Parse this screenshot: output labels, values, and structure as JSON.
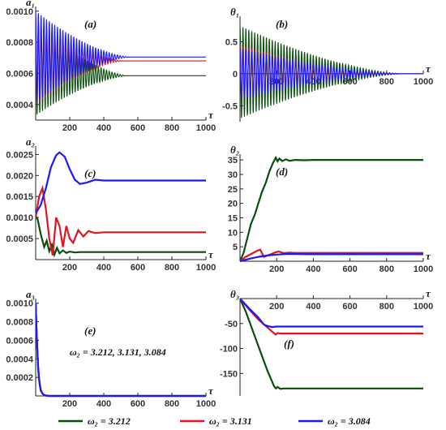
{
  "colors": {
    "green": "#0b4d0b",
    "red": "#e0141e",
    "blue": "#1a1aff"
  },
  "legend": [
    {
      "label": "ω₂ = 3.212",
      "color": "#0b4d0b"
    },
    {
      "label": "ω₂ = 3.131",
      "color": "#e0141e"
    },
    {
      "label": "ω₂ = 3.084",
      "color": "#1a1aff"
    }
  ],
  "chart_data": [
    {
      "type": "line",
      "panel_label": "(a)",
      "ylabel": "a₁",
      "xlabel": "τ",
      "xlim": [
        0,
        1000
      ],
      "ylim": [
        0.0003,
        0.00103
      ],
      "xticks": [
        200,
        400,
        600,
        800,
        1000
      ],
      "xtick_labels": [
        "200",
        "400",
        "600",
        "800",
        "1000"
      ],
      "yticks": [
        0.0004,
        0.0006,
        0.0008,
        0.001
      ],
      "ytick_labels": [
        "0.0004",
        "0.0006",
        "0.0008",
        "0.0010"
      ],
      "x_axis_at": 0.0003,
      "series": [
        {
          "name": "ω₂ = 3.212",
          "kind": "osc",
          "steady": 0.000585,
          "start_lo": 0.00033,
          "start_hi": 0.00093,
          "tau_end": 550,
          "period": 16,
          "color": "#0b4d0b"
        },
        {
          "name": "ω₂ = 3.131",
          "kind": "osc",
          "steady": 0.00068,
          "start_lo": 0.0004,
          "start_hi": 0.00096,
          "tau_end": 520,
          "period": 16,
          "color": "#e0141e"
        },
        {
          "name": "ω₂ = 3.084",
          "kind": "osc",
          "steady": 0.000705,
          "start_lo": 0.00041,
          "start_hi": 0.001,
          "tau_end": 560,
          "period": 16,
          "color": "#1a1aff"
        }
      ]
    },
    {
      "type": "line",
      "panel_label": "(b)",
      "ylabel": "θ₁",
      "xlabel": "τ",
      "xlim": [
        0,
        1000
      ],
      "ylim": [
        -0.75,
        0.9
      ],
      "xticks": [
        200,
        400,
        600,
        800,
        1000
      ],
      "xtick_labels": [
        "200",
        "400",
        "600",
        "800",
        "1000"
      ],
      "yticks": [
        -0.5,
        0,
        0.5
      ],
      "ytick_labels": [
        "-0.5",
        "0",
        "0.5"
      ],
      "x_axis_at": 0,
      "series": [
        {
          "name": "ω₂ = 3.212",
          "kind": "osc",
          "steady": 0,
          "start_lo": -0.7,
          "start_hi": 0.75,
          "tau_end": 900,
          "period": 16,
          "color": "#0b4d0b"
        },
        {
          "name": "ω₂ = 3.131",
          "kind": "osc",
          "steady": 0,
          "start_lo": -0.4,
          "start_hi": 0.45,
          "tau_end": 800,
          "period": 16,
          "color": "#e0141e"
        },
        {
          "name": "ω₂ = 3.084",
          "kind": "osc",
          "steady": 0,
          "start_lo": -0.4,
          "start_hi": 0.4,
          "tau_end": 900,
          "period": 16,
          "color": "#1a1aff"
        }
      ]
    },
    {
      "type": "line",
      "panel_label": "(c)",
      "ylabel": "a₂",
      "xlabel": "τ",
      "xlim": [
        0,
        1000
      ],
      "ylim": [
        0.0,
        0.0027
      ],
      "xticks": [
        200,
        400,
        600,
        800,
        1000
      ],
      "xtick_labels": [
        "200",
        "400",
        "600",
        "800",
        "1000"
      ],
      "yticks": [
        0.0005,
        0.001,
        0.0015,
        0.002,
        0.0025
      ],
      "ytick_labels": [
        "0.0005",
        "0.0010",
        "0.0015",
        "0.0020",
        "0.0025"
      ],
      "x_axis_at": 0.0,
      "series": [
        {
          "name": "ω₂ = 3.212",
          "kind": "points",
          "x": [
            0,
            12,
            30,
            50,
            65,
            80,
            95,
            110,
            125,
            140,
            160,
            180,
            200,
            230,
            260,
            300,
            400,
            1000
          ],
          "y": [
            0.00105,
            0.00095,
            0.0006,
            0.0003,
            0.00045,
            0.0002,
            0.00035,
            0.00012,
            0.00028,
            0.00015,
            0.00022,
            0.00016,
            0.00019,
            0.00017,
            0.00018,
            0.00018,
            0.00018,
            0.00018
          ],
          "color": "#0b4d0b"
        },
        {
          "name": "ω₂ = 3.131",
          "kind": "points",
          "x": [
            0,
            20,
            40,
            60,
            80,
            100,
            120,
            140,
            160,
            180,
            200,
            220,
            250,
            280,
            310,
            350,
            400,
            1000
          ],
          "y": [
            0.001,
            0.0015,
            0.0017,
            0.0012,
            0.0005,
            0.0001,
            0.001,
            0.0008,
            0.0003,
            0.0008,
            0.0005,
            0.0004,
            0.0007,
            0.00055,
            0.00068,
            0.00063,
            0.00065,
            0.00065
          ],
          "color": "#e0141e"
        },
        {
          "name": "ω₂ = 3.084",
          "kind": "points",
          "x": [
            0,
            30,
            60,
            90,
            120,
            140,
            170,
            200,
            230,
            260,
            300,
            350,
            400,
            450,
            500,
            600,
            1000
          ],
          "y": [
            0.0011,
            0.0013,
            0.0017,
            0.0022,
            0.00248,
            0.00255,
            0.00245,
            0.00215,
            0.0019,
            0.0018,
            0.00183,
            0.0019,
            0.00188,
            0.00188,
            0.00188,
            0.00188,
            0.00188
          ],
          "color": "#1a1aff"
        }
      ]
    },
    {
      "type": "line",
      "panel_label": "(d)",
      "ylabel": "θ₂",
      "xlabel": "τ",
      "xlim": [
        0,
        1000
      ],
      "ylim": [
        0,
        37
      ],
      "xticks": [
        200,
        400,
        600,
        800,
        1000
      ],
      "xtick_labels": [
        "200",
        "400",
        "600",
        "800",
        "1000"
      ],
      "yticks": [
        5,
        10,
        15,
        20,
        25,
        30,
        35
      ],
      "ytick_labels": [
        "5",
        "10",
        "15",
        "20",
        "25",
        "30",
        "35"
      ],
      "x_axis_at": 0,
      "series": [
        {
          "name": "ω₂ = 3.212",
          "kind": "points",
          "x": [
            0,
            20,
            40,
            60,
            80,
            100,
            120,
            140,
            160,
            180,
            195,
            205,
            215,
            230,
            250,
            270,
            300,
            350,
            400,
            1000
          ],
          "y": [
            0,
            3,
            8,
            13,
            16,
            20,
            24,
            27,
            31,
            34,
            35.8,
            34.5,
            35.5,
            34.6,
            35.2,
            34.7,
            35,
            34.9,
            35,
            35
          ],
          "color": "#0b4d0b"
        },
        {
          "name": "ω₂ = 3.131",
          "kind": "points",
          "x": [
            0,
            30,
            60,
            90,
            110,
            130,
            150,
            170,
            190,
            210,
            240,
            270,
            300,
            400,
            1000
          ],
          "y": [
            0,
            1.5,
            2.5,
            3.5,
            4,
            1.5,
            2,
            2.5,
            3,
            3.4,
            2.8,
            3,
            2.9,
            2.9,
            2.9
          ],
          "color": "#e0141e"
        },
        {
          "name": "ω₂ = 3.084",
          "kind": "points",
          "x": [
            0,
            50,
            100,
            150,
            200,
            250,
            300,
            400,
            1000
          ],
          "y": [
            0,
            0.8,
            1.5,
            2,
            2.3,
            2.5,
            2.5,
            2.4,
            2.4
          ],
          "color": "#1a1aff"
        }
      ]
    },
    {
      "type": "line",
      "panel_label": "(e)",
      "ylabel": "a₃",
      "xlabel": "τ",
      "annotation": "ω₂ = 3.212, 3.131, 3.084",
      "xlim": [
        0,
        1000
      ],
      "ylim": [
        0,
        0.00105
      ],
      "xticks": [
        200,
        400,
        600,
        800,
        1000
      ],
      "xtick_labels": [
        "200",
        "400",
        "600",
        "800",
        "1000"
      ],
      "yticks": [
        0.0002,
        0.0004,
        0.0006,
        0.0008,
        0.001
      ],
      "ytick_labels": [
        "0.0002",
        "0.0004",
        "0.0006",
        "0.0008",
        "0.0010"
      ],
      "x_axis_at": 0,
      "series": [
        {
          "name": "ω₂ = 3.212",
          "kind": "points",
          "x": [
            0,
            5,
            10,
            15,
            20,
            25,
            30,
            40,
            50,
            60,
            80,
            100,
            1000
          ],
          "y": [
            0.001,
            0.00072,
            0.00048,
            0.0003,
            0.00018,
            0.00011,
            6e-05,
            2.5e-05,
            1e-05,
            4e-06,
            0,
            0,
            0
          ],
          "color": "#0b4d0b"
        },
        {
          "name": "ω₂ = 3.131",
          "kind": "points",
          "x": [
            0,
            5,
            10,
            15,
            20,
            25,
            30,
            40,
            50,
            60,
            80,
            100,
            1000
          ],
          "y": [
            0.001,
            0.00072,
            0.00048,
            0.0003,
            0.00018,
            0.00011,
            6e-05,
            2.5e-05,
            1e-05,
            4e-06,
            0,
            0,
            0
          ],
          "color": "#e0141e"
        },
        {
          "name": "ω₂ = 3.084",
          "kind": "points",
          "x": [
            0,
            5,
            10,
            15,
            20,
            25,
            30,
            40,
            50,
            60,
            80,
            100,
            1000
          ],
          "y": [
            0.001,
            0.00072,
            0.00048,
            0.0003,
            0.00018,
            0.00011,
            6e-05,
            2.5e-05,
            1e-05,
            4e-06,
            0,
            0,
            0
          ],
          "color": "#1a1aff"
        }
      ]
    },
    {
      "type": "line",
      "panel_label": "(f)",
      "ylabel": "θ₃",
      "xlabel": "τ",
      "xlim": [
        0,
        1000
      ],
      "ylim": [
        -195,
        0
      ],
      "xticks": [
        200,
        400,
        600,
        800,
        1000
      ],
      "xtick_labels": [
        "200",
        "400",
        "600",
        "800",
        "1000"
      ],
      "yticks": [
        -150,
        -100,
        -50
      ],
      "ytick_labels": [
        "-150",
        "-100",
        "-50"
      ],
      "x_axis_at": 0,
      "series": [
        {
          "name": "ω₂ = 3.212",
          "kind": "points",
          "x": [
            0,
            30,
            60,
            90,
            120,
            150,
            170,
            185,
            195,
            205,
            220,
            240,
            1000
          ],
          "y": [
            0,
            -25,
            -55,
            -85,
            -115,
            -145,
            -162,
            -175,
            -180,
            -177,
            -181,
            -180,
            -180
          ],
          "color": "#0b4d0b"
        },
        {
          "name": "ω₂ = 3.131",
          "kind": "points",
          "x": [
            0,
            50,
            100,
            150,
            180,
            195,
            205,
            220,
            1000
          ],
          "y": [
            0,
            -22,
            -42,
            -58,
            -68,
            -72,
            -69,
            -70,
            -70
          ],
          "color": "#e0141e"
        },
        {
          "name": "ω₂ = 3.084",
          "kind": "points",
          "x": [
            0,
            50,
            100,
            130,
            150,
            175,
            200,
            1000
          ],
          "y": [
            0,
            -20,
            -38,
            -52,
            -55,
            -57,
            -56,
            -56
          ],
          "color": "#1a1aff"
        }
      ]
    }
  ]
}
